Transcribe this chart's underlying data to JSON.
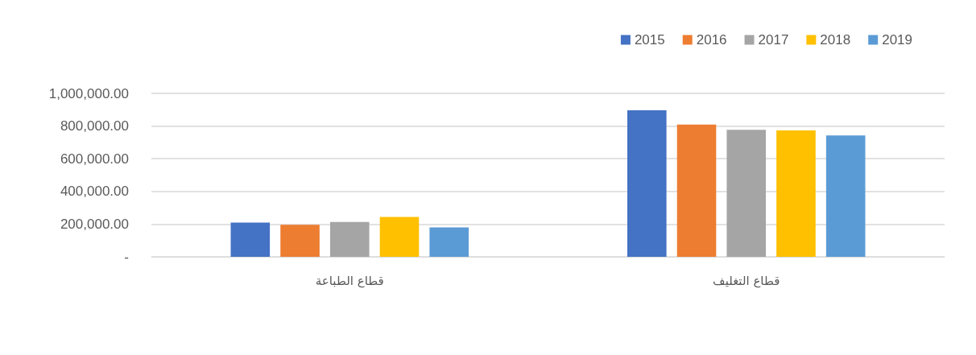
{
  "chart_data": {
    "type": "bar",
    "categories": [
      "قطاع الطباعة",
      "قطاع التغليف"
    ],
    "series": [
      {
        "name": "2015",
        "color": "#4472c4",
        "values": [
          209000,
          896000
        ]
      },
      {
        "name": "2016",
        "color": "#ed7d31",
        "values": [
          196000,
          809000
        ]
      },
      {
        "name": "2017",
        "color": "#a5a5a5",
        "values": [
          213000,
          777000
        ]
      },
      {
        "name": "2018",
        "color": "#ffc000",
        "values": [
          244000,
          774000
        ]
      },
      {
        "name": "2019",
        "color": "#5b9bd5",
        "values": [
          180000,
          742000
        ]
      }
    ],
    "ylim": [
      0,
      1000000
    ],
    "yticks": [
      {
        "value": 0,
        "label": "-"
      },
      {
        "value": 200000,
        "label": "200,000.00"
      },
      {
        "value": 400000,
        "label": "400,000.00"
      },
      {
        "value": 600000,
        "label": "600,000.00"
      },
      {
        "value": 800000,
        "label": "800,000.00"
      },
      {
        "value": 1000000,
        "label": "1,000,000.00"
      }
    ],
    "grid": "y",
    "legend": "top right"
  }
}
